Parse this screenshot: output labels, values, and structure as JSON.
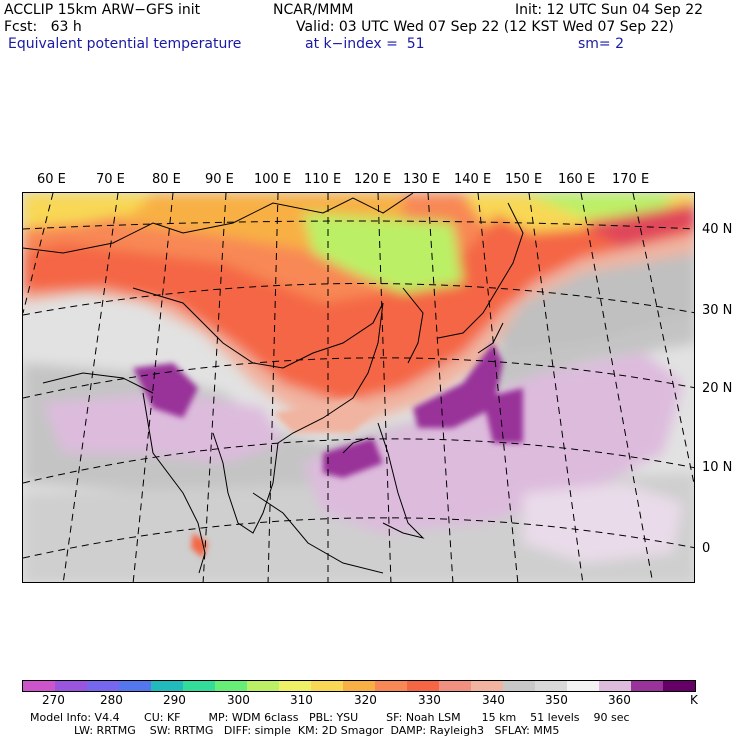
{
  "header": {
    "model": "ACCLIP 15km ARW−GFS init",
    "org": "NCAR/MMM",
    "init": "Init: 12 UTC Sun 04 Sep 22",
    "fcst": "Fcst:   63 h",
    "valid": "Valid: 03 UTC Wed 07 Sep 22 (12 KST Wed 07 Sep 22)",
    "field": "Equivalent potential temperature",
    "level": "at k−index =  51",
    "smooth": "sm= 2"
  },
  "lon_labels": [
    "60 E",
    "70 E",
    "80 E",
    "90 E",
    "100 E",
    "110 E",
    "120 E",
    "130 E",
    "140 E",
    "150 E",
    "160 E",
    "170 E"
  ],
  "lat_labels": [
    "40 N",
    "30 N",
    "20 N",
    "10 N",
    "0"
  ],
  "colorbar": {
    "colors": [
      "#cc55cc",
      "#9955dd",
      "#7766ee",
      "#5577ee",
      "#22bbbb",
      "#33dd99",
      "#66ee77",
      "#bbf066",
      "#eef066",
      "#f8d855",
      "#f8b044",
      "#f88855",
      "#f46644",
      "#f09080",
      "#f0b4a0",
      "#c8c8c8",
      "#d8d8d8",
      "#f2f2f2",
      "#ddbbdd",
      "#993399",
      "#660066"
    ],
    "tick_labels": [
      "270",
      "280",
      "290",
      "300",
      "310",
      "320",
      "330",
      "340",
      "350",
      "360"
    ],
    "unit": "K"
  },
  "model_info": {
    "line1": "Model Info: V4.4       CU: KF        MP: WDM 6class   PBL: YSU        SF: Noah LSM      15 km    51 levels    90 sec",
    "line2": "LW: RRTMG    SW: RRTMG   DIFF: simple  KM: 2D Smagor  DAMP: Rayleigh3   SFLAY: MM5"
  }
}
